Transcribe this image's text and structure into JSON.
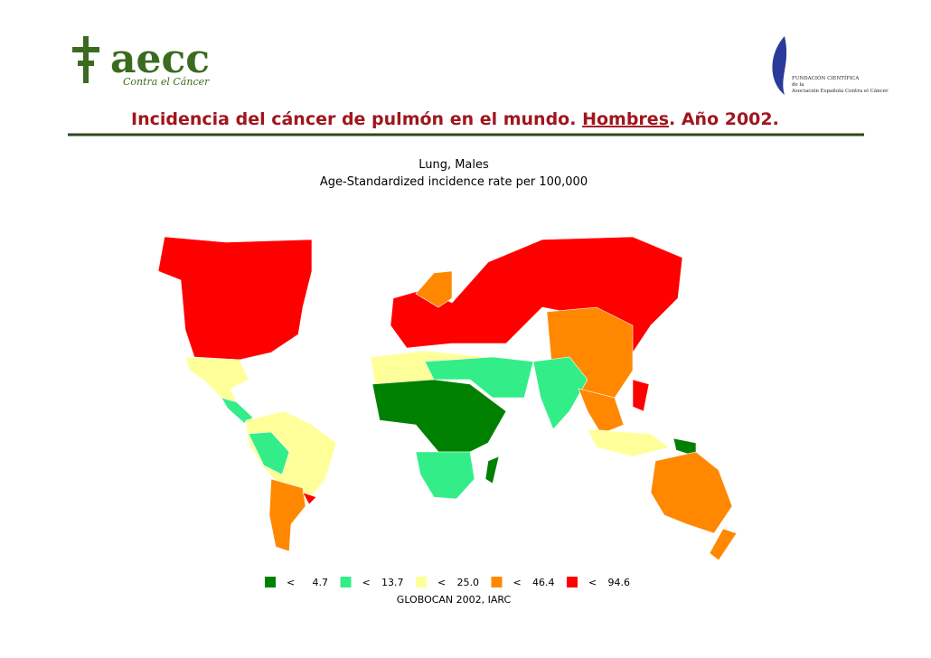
{
  "header": {
    "logo": {
      "name": "aecc",
      "tagline": "Contra el Cáncer"
    },
    "foundation": {
      "line1": "FUNDACIÓN CIENTÍFICA",
      "line2": "de la",
      "line3": "Asociación Española Contra el Cáncer"
    },
    "title": {
      "before": "Incidencia del cáncer de pulmón en el mundo. ",
      "emphasis": "Hombres",
      "after": ". Año 2002."
    }
  },
  "map": {
    "title": "Lung, Males",
    "subtitle": "Age-Standardized incidence rate per 100,000",
    "legend": [
      {
        "symbol": "<",
        "value": "4.7",
        "color": "#008000"
      },
      {
        "symbol": "<",
        "value": "13.7",
        "color": "#33ee88"
      },
      {
        "symbol": "<",
        "value": "25.0",
        "color": "#ffff99"
      },
      {
        "symbol": "<",
        "value": "46.4",
        "color": "#ff8800"
      },
      {
        "symbol": "<",
        "value": "94.6",
        "color": "#ff0000"
      }
    ],
    "source": "GLOBOCAN 2002, IARC"
  }
}
